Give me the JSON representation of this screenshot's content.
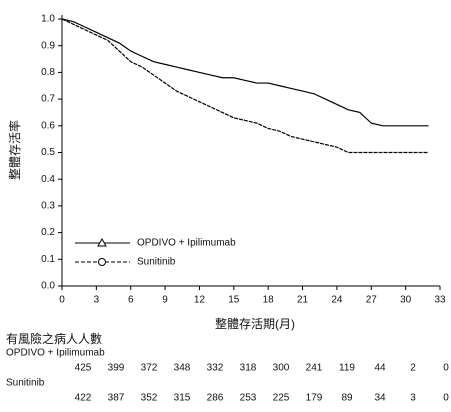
{
  "chart_data": {
    "type": "line",
    "ylabel": "整體存活率",
    "xlabel": "整體存活期(月)",
    "x": [
      0,
      1,
      2,
      3,
      4,
      5,
      6,
      7,
      8,
      9,
      10,
      11,
      12,
      13,
      14,
      15,
      16,
      17,
      18,
      19,
      20,
      21,
      22,
      23,
      24,
      25,
      26,
      27,
      28,
      29,
      30,
      31,
      32
    ],
    "series": [
      {
        "name": "OPDIVO + Ipilimumab",
        "color": "#000000",
        "marker": "triangle",
        "values": [
          1.0,
          0.99,
          0.97,
          0.95,
          0.93,
          0.91,
          0.88,
          0.86,
          0.84,
          0.83,
          0.82,
          0.81,
          0.8,
          0.79,
          0.78,
          0.78,
          0.77,
          0.76,
          0.76,
          0.75,
          0.74,
          0.73,
          0.72,
          0.7,
          0.68,
          0.66,
          0.65,
          0.61,
          0.6,
          0.6,
          0.6,
          0.6,
          0.6
        ]
      },
      {
        "name": "Sunitinib",
        "color": "#000000",
        "marker": "circle",
        "values": [
          1.0,
          0.98,
          0.96,
          0.94,
          0.92,
          0.88,
          0.84,
          0.82,
          0.79,
          0.76,
          0.73,
          0.71,
          0.69,
          0.67,
          0.65,
          0.63,
          0.62,
          0.61,
          0.59,
          0.58,
          0.56,
          0.55,
          0.54,
          0.53,
          0.52,
          0.5,
          0.5,
          0.5,
          0.5,
          0.5,
          0.5,
          0.5,
          0.5
        ]
      }
    ],
    "xlim": [
      0,
      33
    ],
    "xticks": [
      0,
      3,
      6,
      9,
      12,
      15,
      18,
      21,
      24,
      27,
      30,
      33
    ],
    "ylim": [
      0,
      1.0
    ],
    "yticks": [
      {
        "value": 0,
        "label": "0.0"
      },
      0.1,
      0.2,
      0.3,
      0.4,
      0.5,
      0.6,
      0.7,
      0.8,
      0.9,
      {
        "value": 1.0,
        "label": "1.0"
      }
    ],
    "legend": "lower-left",
    "risk_table": {
      "title": "有風險之病人人數",
      "rows": [
        {
          "name": "OPDIVO + Ipilimumab",
          "counts": [
            "425",
            "399",
            "372",
            "348",
            "332",
            "318",
            "300",
            "241",
            "119",
            "44",
            "2",
            "0"
          ]
        },
        {
          "name": "Sunitinib",
          "counts": [
            "422",
            "387",
            "352",
            "315",
            "286",
            "253",
            "225",
            "179",
            "89",
            "34",
            "3",
            "0"
          ]
        }
      ]
    }
  }
}
